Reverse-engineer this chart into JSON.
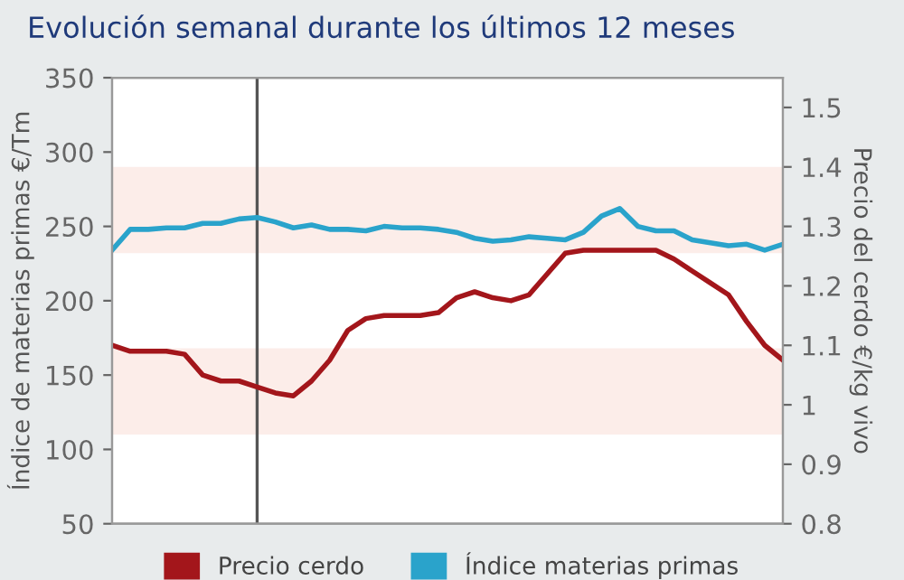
{
  "chart_data": {
    "type": "line",
    "title": "Evolución semanal durante los últimos 12 meses",
    "ylabel": "Índice de materias primas €/Tm",
    "y2label": "Precio del cerdo €/kg vivo",
    "categories": [
      null,
      null,
      null,
      null,
      null,
      null,
      null,
      null,
      null,
      null,
      null,
      null,
      null,
      null,
      null,
      null,
      null,
      null,
      null,
      null,
      null,
      null,
      null,
      null,
      null,
      null,
      null,
      null,
      null,
      null,
      null,
      null,
      null,
      null,
      null,
      null,
      null,
      null
    ],
    "series": [
      {
        "name": "Precio cerdo",
        "color": "#a3161b",
        "axis": "y2",
        "values": [
          1.1,
          1.09,
          1.09,
          1.09,
          1.085,
          1.05,
          1.04,
          1.04,
          1.03,
          1.02,
          1.015,
          1.04,
          1.075,
          1.125,
          1.145,
          1.15,
          1.15,
          1.15,
          1.155,
          1.18,
          1.19,
          1.18,
          1.175,
          1.185,
          1.22,
          1.255,
          1.26,
          1.26,
          1.26,
          1.26,
          1.26,
          1.245,
          1.225,
          1.205,
          1.185,
          1.14,
          1.1,
          1.075
        ]
      },
      {
        "name": "Índice materias primas",
        "color": "#2aa3cb",
        "values": [
          234,
          248,
          248,
          249,
          249,
          252,
          252,
          255,
          256,
          253,
          249,
          251,
          248,
          248,
          247,
          250,
          249,
          249,
          248,
          246,
          242,
          240,
          241,
          243,
          242,
          241,
          246,
          257,
          262,
          250,
          247,
          247,
          241,
          239,
          237,
          238,
          234,
          238
        ]
      }
    ],
    "ylim": [
      50,
      350
    ],
    "yticks": [
      50,
      100,
      150,
      200,
      250,
      300,
      350
    ],
    "y2lim": [
      0.8,
      1.55
    ],
    "y2ticks": [
      0.8,
      0.9,
      1,
      1.1,
      1.2,
      1.3,
      1.4,
      1.5
    ],
    "bands": [
      {
        "axis": "y",
        "from": 232,
        "to": 290,
        "color": "#fcede9"
      },
      {
        "axis": "y",
        "from": 110,
        "to": 168,
        "color": "#fcede9"
      }
    ],
    "grid": false,
    "legend": "bottom"
  }
}
